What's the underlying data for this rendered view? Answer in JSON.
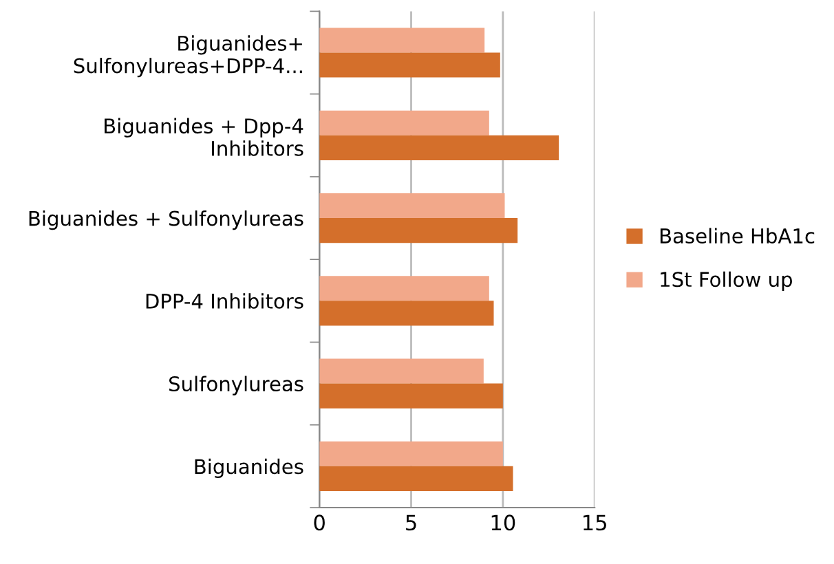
{
  "chart_data": {
    "type": "bar",
    "orientation": "horizontal",
    "categories": [
      "Biguanides+\nSulfonylureas+DPP-4...",
      "Biguanides + Dpp-4\nInhibitors",
      "Biguanides + Sulfonylureas",
      "DPP-4 Inhibitors",
      "Sulfonylureas",
      "Biguanides"
    ],
    "series": [
      {
        "name": "1St Follow up",
        "color": "#f2a88a",
        "values": [
          9.0,
          9.25,
          10.1,
          9.25,
          8.95,
          10.0
        ]
      },
      {
        "name": "Baseline HbA1c",
        "color": "#d46f2b",
        "values": [
          9.85,
          13.05,
          10.8,
          9.5,
          10.0,
          10.55
        ]
      }
    ],
    "xlim": [
      0,
      15
    ],
    "xticks": [
      0,
      5,
      10,
      15
    ],
    "grid": "x",
    "legend": "right"
  }
}
